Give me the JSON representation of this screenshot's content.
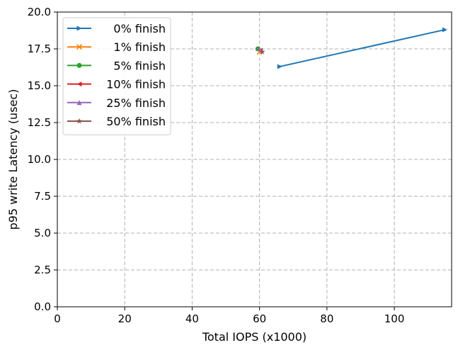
{
  "chart_data": {
    "type": "line",
    "xlabel": "Total IOPS (x1000)",
    "ylabel": "p95 write Latency (usec)",
    "xlim": [
      0,
      117
    ],
    "ylim": [
      0,
      20
    ],
    "xticks": [
      0,
      20,
      40,
      60,
      80,
      100
    ],
    "xtick_labels": [
      "0",
      "20",
      "40",
      "60",
      "80",
      "100"
    ],
    "yticks": [
      0,
      2.5,
      5,
      7.5,
      10,
      12.5,
      15,
      17.5,
      20
    ],
    "ytick_labels": [
      "0.0",
      "2.5",
      "5.0",
      "7.5",
      "10.0",
      "12.5",
      "15.0",
      "17.5",
      "20.0"
    ],
    "grid": true,
    "legend_position": "top-left",
    "series": [
      {
        "name": "0% finish",
        "color": "#1f77b4",
        "marker": "triangle-right",
        "points": [
          [
            66,
            16.3
          ],
          [
            115,
            18.8
          ]
        ]
      },
      {
        "name": "1% finish",
        "color": "#ff7f0e",
        "marker": "x",
        "points": [
          [
            60.0,
            17.3
          ]
        ]
      },
      {
        "name": "5% finish",
        "color": "#2ca02c",
        "marker": "circle",
        "points": [
          [
            59.5,
            17.5
          ]
        ]
      },
      {
        "name": "10% finish",
        "color": "#d62728",
        "marker": "triangle-left",
        "points": [
          [
            60.2,
            17.4
          ]
        ]
      },
      {
        "name": "25% finish",
        "color": "#9467bd",
        "marker": "triangle-up",
        "points": [
          [
            60.0,
            17.5
          ]
        ]
      },
      {
        "name": "50% finish",
        "color": "#8c564b",
        "marker": "star",
        "points": [
          [
            60.8,
            17.3
          ]
        ]
      }
    ]
  }
}
